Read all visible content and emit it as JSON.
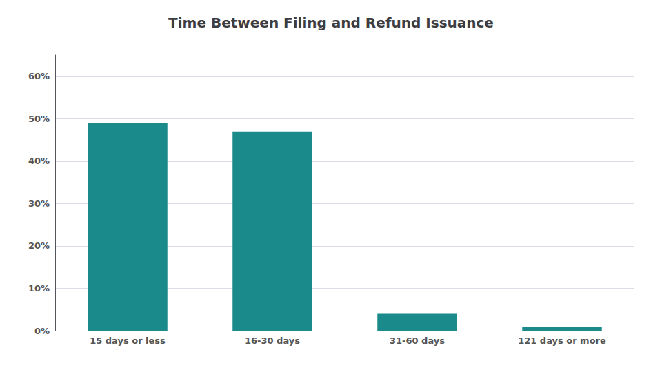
{
  "chart_data": {
    "type": "bar",
    "title": "Time Between Filing and Refund Issuance",
    "categories": [
      "15 days or less",
      "16-30 days",
      "31-60 days",
      "121 days or more"
    ],
    "values": [
      49.0,
      47.0,
      4.0,
      0.8
    ],
    "color": "#1a8a8a",
    "ylim": [
      0,
      65
    ],
    "yticks": [
      {
        "value": 0,
        "label": "0%"
      },
      {
        "value": 10,
        "label": "10%"
      },
      {
        "value": 20,
        "label": "20%"
      },
      {
        "value": 30,
        "label": "30%"
      },
      {
        "value": 40,
        "label": "40%"
      },
      {
        "value": 50,
        "label": "50%"
      },
      {
        "value": 60,
        "label": "60%"
      }
    ],
    "grid": true
  }
}
